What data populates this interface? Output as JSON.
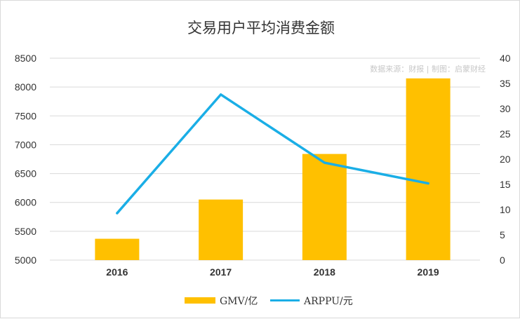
{
  "chart_data": {
    "type": "bar",
    "title": "交易用户平均消费金额",
    "source_note": "数据来源：财报 | 制图：启蒙财经",
    "categories": [
      "2016",
      "2017",
      "2018",
      "2019"
    ],
    "series": [
      {
        "name": "GMV/亿",
        "kind": "bar",
        "axis": "left",
        "color": "#ffc000",
        "values": [
          5370,
          6050,
          6840,
          8150
        ]
      },
      {
        "name": "ARPPU/元",
        "kind": "line",
        "axis": "right",
        "color": "#1aaee6",
        "values": [
          9.3,
          32.8,
          19.3,
          15.2
        ]
      }
    ],
    "y_left": {
      "min": 5000,
      "max": 8500,
      "step": 500,
      "ticks": [
        "5000",
        "5500",
        "6000",
        "6500",
        "7000",
        "7500",
        "8000",
        "8500"
      ]
    },
    "y_right": {
      "min": 0,
      "max": 40,
      "step": 5,
      "ticks": [
        "0",
        "5",
        "10",
        "15",
        "20",
        "25",
        "30",
        "35",
        "40"
      ]
    },
    "grid": true,
    "legend_position": "bottom"
  }
}
